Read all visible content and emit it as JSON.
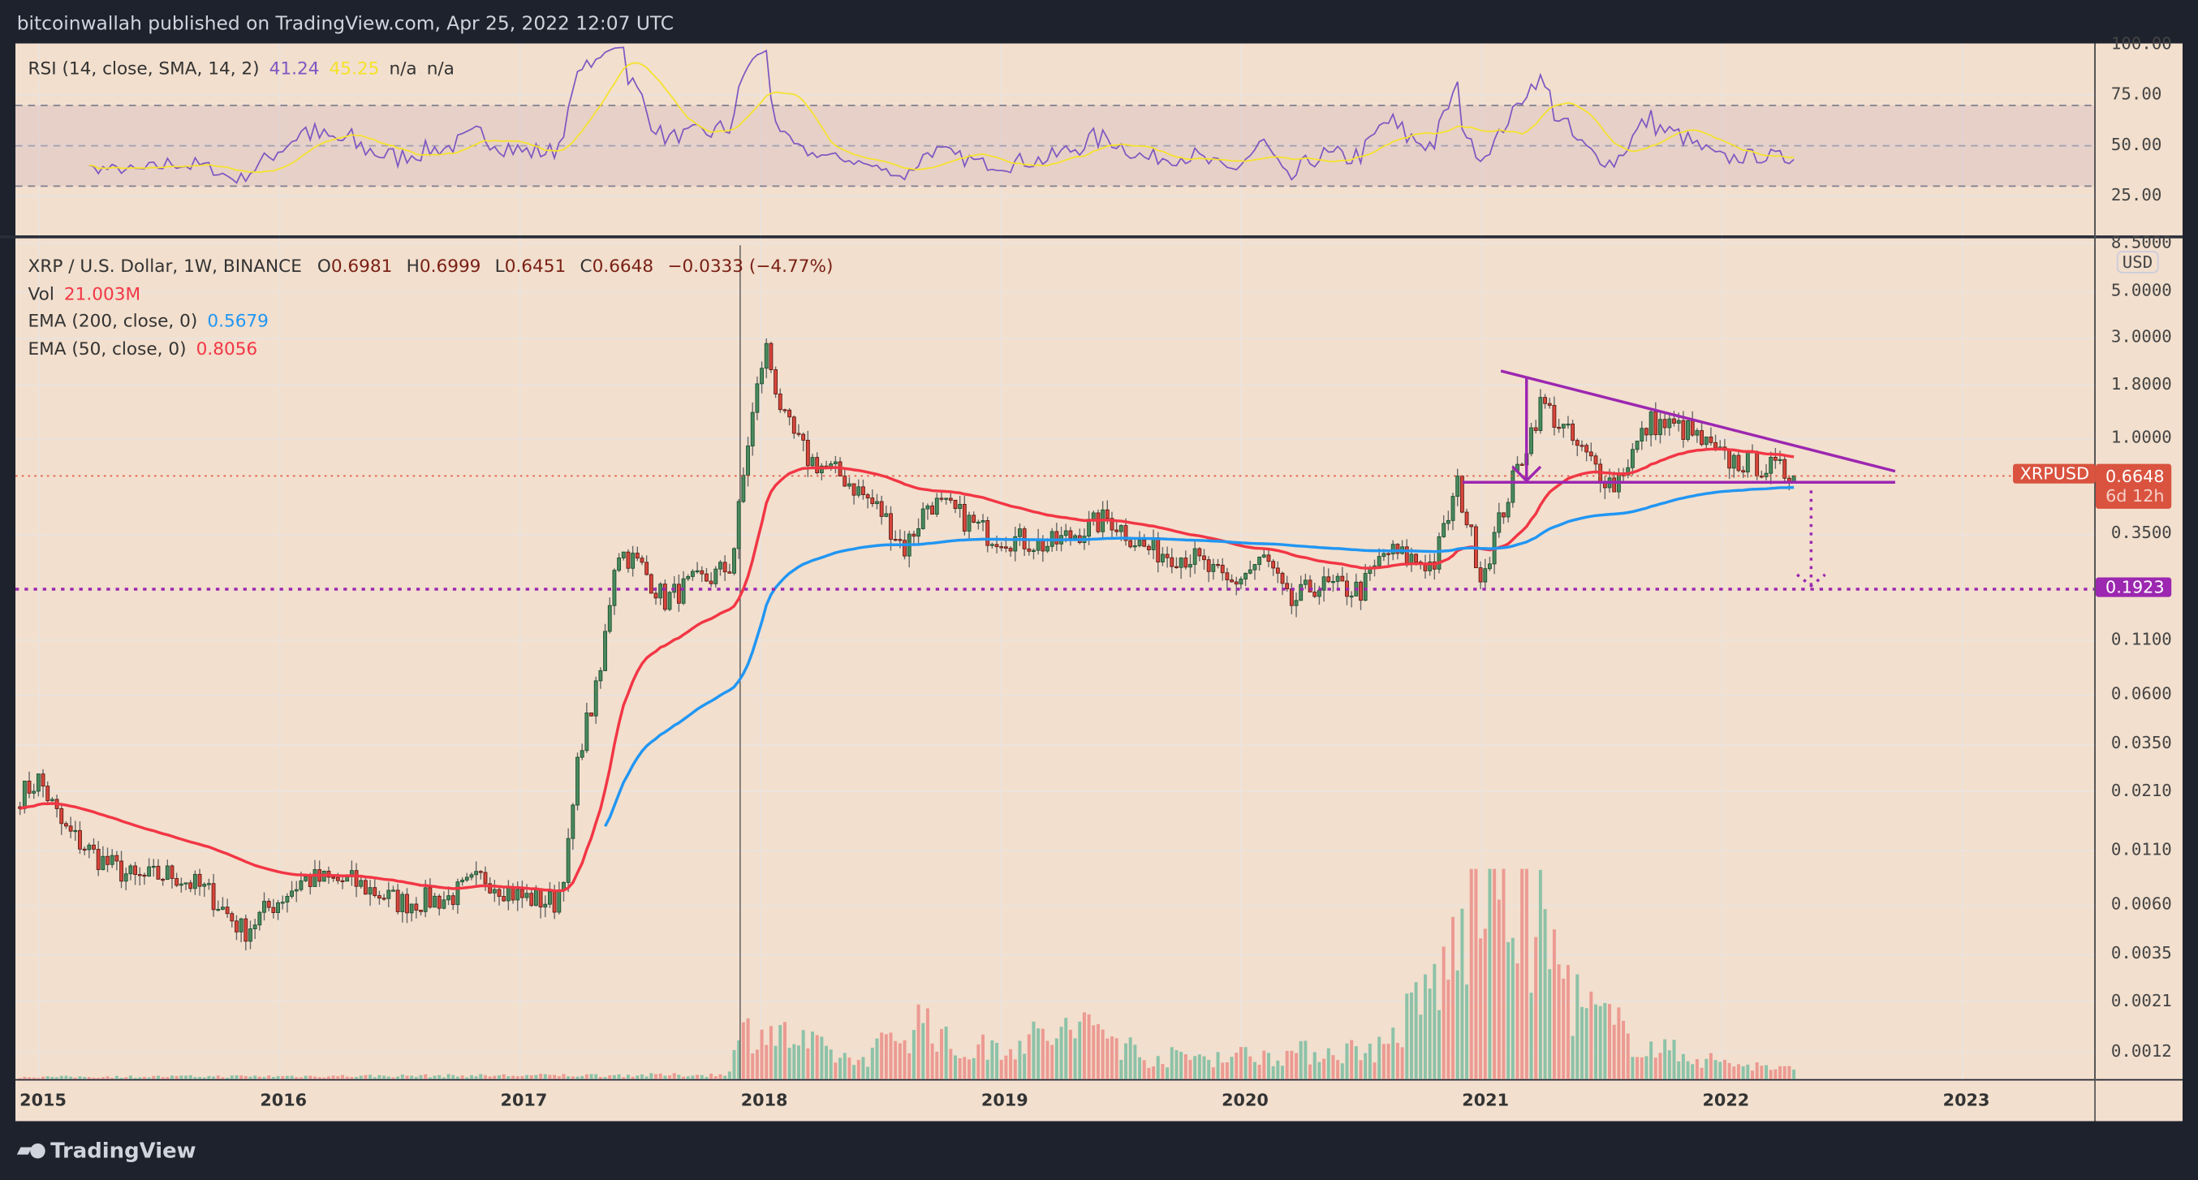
{
  "header": {
    "published": "bitcoinwallah published on TradingView.com, Apr 25, 2022 12:07 UTC"
  },
  "rsi_legend": {
    "label": "RSI (14, close, SMA, 14, 2)",
    "rsi": "41.24",
    "sma": "45.25",
    "na1": "n/a",
    "na2": "n/a"
  },
  "price_legend": {
    "symbol": "XRP / U.S. Dollar, 1W, BINANCE",
    "o_label": "O",
    "o": "0.6981",
    "h_label": "H",
    "h": "0.6999",
    "l_label": "L",
    "l": "0.6451",
    "c_label": "C",
    "c": "0.6648",
    "change": "−0.0333 (−4.77%)",
    "vol_label": "Vol",
    "vol": "21.003M",
    "ema200_label": "EMA (200, close, 0)",
    "ema200": "0.5679",
    "ema50_label": "EMA (50, close, 0)",
    "ema50": "0.8056"
  },
  "price_axis": {
    "currency": "USD",
    "ticks": [
      "8.5000",
      "5.0000",
      "3.0000",
      "1.8000",
      "1.0000",
      "0.3500",
      "0.1100",
      "0.0600",
      "0.0350",
      "0.0210",
      "0.0110",
      "0.0060",
      "0.0035",
      "0.0021",
      "0.0012"
    ]
  },
  "rsi_axis": {
    "ticks": [
      "100.00",
      "75.00",
      "50.00",
      "25.00"
    ]
  },
  "time_axis": {
    "ticks": [
      "2015",
      "2016",
      "2017",
      "2018",
      "2019",
      "2020",
      "2021",
      "2022",
      "2023"
    ]
  },
  "tags": {
    "symbol": "XRPUSD",
    "last_price": "0.6648",
    "countdown": "6d 12h",
    "target": "0.1923"
  },
  "brand": {
    "name": "TradingView"
  },
  "colors": {
    "up": "#4a8a5e",
    "down": "#d9453b",
    "ema50": "#f23645",
    "ema200": "#2196f3",
    "rsi": "#7e57c2",
    "rsi_sma": "#f5e22a",
    "drawing": "#9c27b0",
    "price_line": "#e0533f"
  },
  "chart_data": {
    "type": "candlestick",
    "title": "XRP / U.S. Dollar, 1W, BINANCE",
    "yscale": "log",
    "ylim": [
      0.001,
      8.5
    ],
    "xlim": [
      2014.92,
      2023.55
    ],
    "close_keypoints": [
      [
        2014.92,
        0.02
      ],
      [
        2015.0,
        0.024
      ],
      [
        2015.1,
        0.014
      ],
      [
        2015.25,
        0.01
      ],
      [
        2015.4,
        0.008
      ],
      [
        2015.55,
        0.0085
      ],
      [
        2015.7,
        0.007
      ],
      [
        2015.85,
        0.0045
      ],
      [
        2015.95,
        0.0058
      ],
      [
        2016.1,
        0.008
      ],
      [
        2016.3,
        0.0078
      ],
      [
        2016.5,
        0.0062
      ],
      [
        2016.7,
        0.0065
      ],
      [
        2016.85,
        0.0082
      ],
      [
        2017.0,
        0.0066
      ],
      [
        2017.15,
        0.0062
      ],
      [
        2017.2,
        0.011
      ],
      [
        2017.25,
        0.035
      ],
      [
        2017.33,
        0.07
      ],
      [
        2017.4,
        0.3
      ],
      [
        2017.5,
        0.25
      ],
      [
        2017.6,
        0.17
      ],
      [
        2017.7,
        0.2
      ],
      [
        2017.8,
        0.22
      ],
      [
        2017.88,
        0.25
      ],
      [
        2017.95,
        1.0
      ],
      [
        2018.02,
        2.8
      ],
      [
        2018.1,
        1.2
      ],
      [
        2018.2,
        0.8
      ],
      [
        2018.35,
        0.65
      ],
      [
        2018.5,
        0.45
      ],
      [
        2018.6,
        0.3
      ],
      [
        2018.7,
        0.5
      ],
      [
        2018.8,
        0.45
      ],
      [
        2018.95,
        0.35
      ],
      [
        2019.2,
        0.31
      ],
      [
        2019.45,
        0.42
      ],
      [
        2019.6,
        0.3
      ],
      [
        2019.8,
        0.27
      ],
      [
        2019.95,
        0.2
      ],
      [
        2020.1,
        0.27
      ],
      [
        2020.2,
        0.16
      ],
      [
        2020.3,
        0.2
      ],
      [
        2020.5,
        0.19
      ],
      [
        2020.6,
        0.29
      ],
      [
        2020.8,
        0.25
      ],
      [
        2020.9,
        0.6
      ],
      [
        2021.0,
        0.22
      ],
      [
        2021.1,
        0.5
      ],
      [
        2021.25,
        1.5
      ],
      [
        2021.4,
        0.9
      ],
      [
        2021.55,
        0.6
      ],
      [
        2021.7,
        1.2
      ],
      [
        2021.85,
        1.1
      ],
      [
        2022.0,
        0.8
      ],
      [
        2022.15,
        0.75
      ],
      [
        2022.31,
        0.6648
      ]
    ],
    "volume_relative_keypoints": [
      [
        2014.92,
        0.01
      ],
      [
        2017.85,
        0.02
      ],
      [
        2017.95,
        0.25
      ],
      [
        2018.1,
        0.2
      ],
      [
        2018.4,
        0.08
      ],
      [
        2018.7,
        0.3
      ],
      [
        2018.8,
        0.12
      ],
      [
        2019.4,
        0.25
      ],
      [
        2019.6,
        0.1
      ],
      [
        2020.2,
        0.12
      ],
      [
        2020.6,
        0.15
      ],
      [
        2020.9,
        0.6
      ],
      [
        2021.0,
        1.0
      ],
      [
        2021.1,
        0.9
      ],
      [
        2021.25,
        0.7
      ],
      [
        2021.4,
        0.35
      ],
      [
        2021.7,
        0.15
      ],
      [
        2022.0,
        0.08
      ],
      [
        2022.31,
        0.04
      ]
    ],
    "drawings": {
      "triangle_upper": [
        [
          2021.08,
          2.1
        ],
        [
          2022.72,
          0.7
        ]
      ],
      "triangle_lower": [
        [
          2020.92,
          0.62
        ],
        [
          2022.72,
          0.62
        ]
      ],
      "target_level": 0.1923,
      "last_price": 0.6648
    },
    "rsi": {
      "period": 14,
      "sma": 14,
      "bands": [
        70,
        50,
        30
      ],
      "ylim": [
        0,
        100
      ]
    }
  }
}
